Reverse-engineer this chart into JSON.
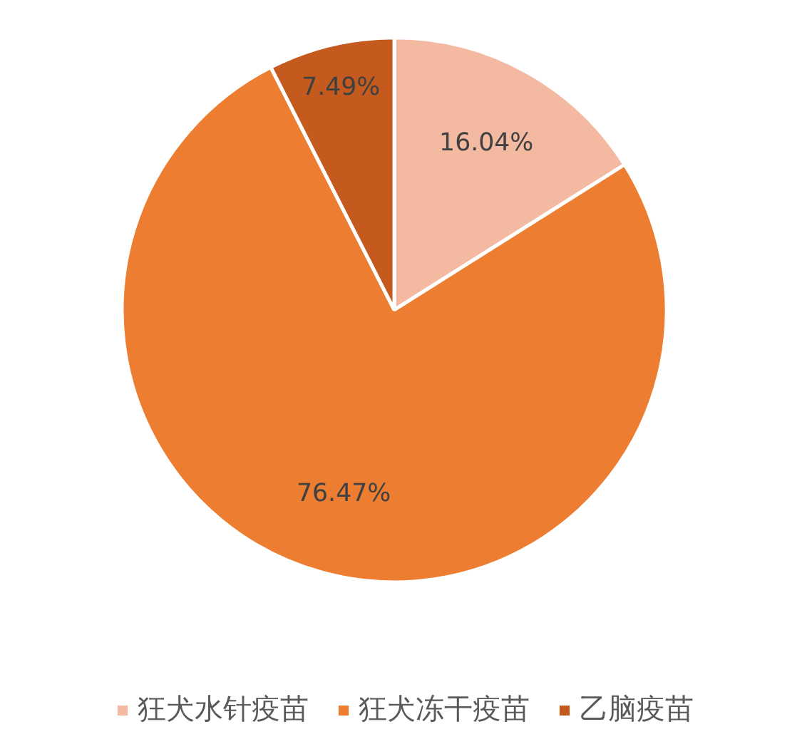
{
  "chart_data": {
    "type": "pie",
    "categories": [
      "狂犬水针疫苗",
      "狂犬冻干疫苗",
      "乙脑疫苗"
    ],
    "values": [
      16.04,
      76.47,
      7.49
    ],
    "colors": [
      "#f4b9a1",
      "#ed7d31",
      "#c55a1f"
    ],
    "value_labels": [
      "16.04%",
      "76.47%",
      "7.49%"
    ],
    "legend": "bottom"
  }
}
